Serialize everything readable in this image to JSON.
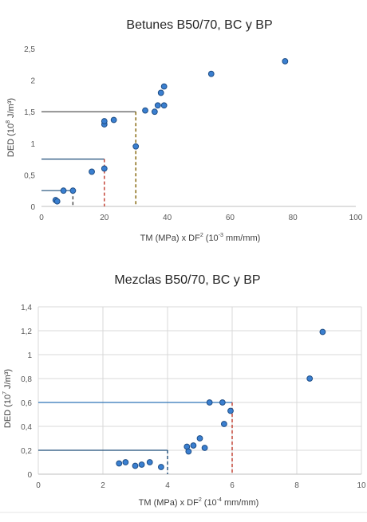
{
  "charts": [
    {
      "title": "Betunes B50/70, BC y BP",
      "ylabel_main": "DED (10",
      "ylabel_sup": "8",
      "ylabel_unit": " J/m³)",
      "xlabel_main": "TM (MPa) x DF",
      "xlabel_sup1": "2",
      "xlabel_mid": " (10",
      "xlabel_sup2": "-3",
      "xlabel_unit": " mm/mm)",
      "x_ticks": [
        "0",
        "20",
        "40",
        "60",
        "80",
        "100"
      ],
      "y_ticks": [
        "0",
        "0,5",
        "1",
        "1,5",
        "2",
        "2,5"
      ]
    },
    {
      "title": "Mezclas B50/70, BC y BP",
      "ylabel_main": "DED (10",
      "ylabel_sup": "7",
      "ylabel_unit": " J/m³)",
      "xlabel_main": "TM (MPa) x DF",
      "xlabel_sup1": "2",
      "xlabel_mid": " (10",
      "xlabel_sup2": "-4",
      "xlabel_unit": " mm/mm)",
      "x_ticks": [
        "0",
        "2",
        "4",
        "6",
        "8",
        "10"
      ],
      "y_ticks": [
        "0",
        "0,2",
        "0,4",
        "0,6",
        "0,8",
        "1",
        "1,2",
        "1,4"
      ]
    }
  ],
  "chart_data": [
    {
      "type": "scatter",
      "title": "Betunes B50/70, BC y BP",
      "xlabel": "TM (MPa) x DF2 (10-3 mm/mm)",
      "ylabel": "DED (108 J/m³)",
      "xlim": [
        0,
        100
      ],
      "ylim": [
        0,
        2.5
      ],
      "grid": false,
      "points": [
        [
          4.5,
          0.1
        ],
        [
          5,
          0.08
        ],
        [
          7,
          0.25
        ],
        [
          10,
          0.25
        ],
        [
          16,
          0.55
        ],
        [
          20,
          0.6
        ],
        [
          20,
          1.3
        ],
        [
          20,
          1.35
        ],
        [
          23,
          1.37
        ],
        [
          30,
          0.95
        ],
        [
          33,
          1.52
        ],
        [
          36,
          1.5
        ],
        [
          37,
          1.6
        ],
        [
          38,
          1.8
        ],
        [
          39,
          1.9
        ],
        [
          39,
          1.6
        ],
        [
          54,
          2.1
        ],
        [
          77.5,
          2.3
        ]
      ],
      "threshold_lines": [
        {
          "y": 0.25,
          "x": 10,
          "h_color": "#1f4e79",
          "v_color": "#404040"
        },
        {
          "y": 0.75,
          "x": 20,
          "h_color": "#1f4e79",
          "v_color": "#c0392b"
        },
        {
          "y": 1.5,
          "x": 30,
          "h_color": "#404040",
          "v_color": "#7f6000"
        }
      ]
    },
    {
      "type": "scatter",
      "title": "Mezclas B50/70, BC y BP",
      "xlabel": "TM (MPa) x DF2 (10-4 mm/mm)",
      "ylabel": "DED (107 J/m³)",
      "xlim": [
        0,
        10
      ],
      "ylim": [
        0,
        1.4
      ],
      "grid": true,
      "points": [
        [
          2.5,
          0.09
        ],
        [
          2.7,
          0.1
        ],
        [
          3,
          0.07
        ],
        [
          3.2,
          0.08
        ],
        [
          3.45,
          0.1
        ],
        [
          3.8,
          0.06
        ],
        [
          4.6,
          0.23
        ],
        [
          4.65,
          0.19
        ],
        [
          4.8,
          0.24
        ],
        [
          5,
          0.3
        ],
        [
          5.15,
          0.22
        ],
        [
          5.3,
          0.6
        ],
        [
          5.7,
          0.6
        ],
        [
          5.75,
          0.42
        ],
        [
          5.95,
          0.53
        ],
        [
          8.4,
          0.8
        ],
        [
          8.8,
          1.19
        ]
      ],
      "threshold_lines": [
        {
          "y": 0.2,
          "x": 4,
          "h_color": "#1f4e79",
          "v_color": "#1f4e79"
        },
        {
          "y": 0.6,
          "x": 6,
          "h_color": "#2e75b6",
          "v_color": "#c0392b"
        }
      ]
    }
  ]
}
